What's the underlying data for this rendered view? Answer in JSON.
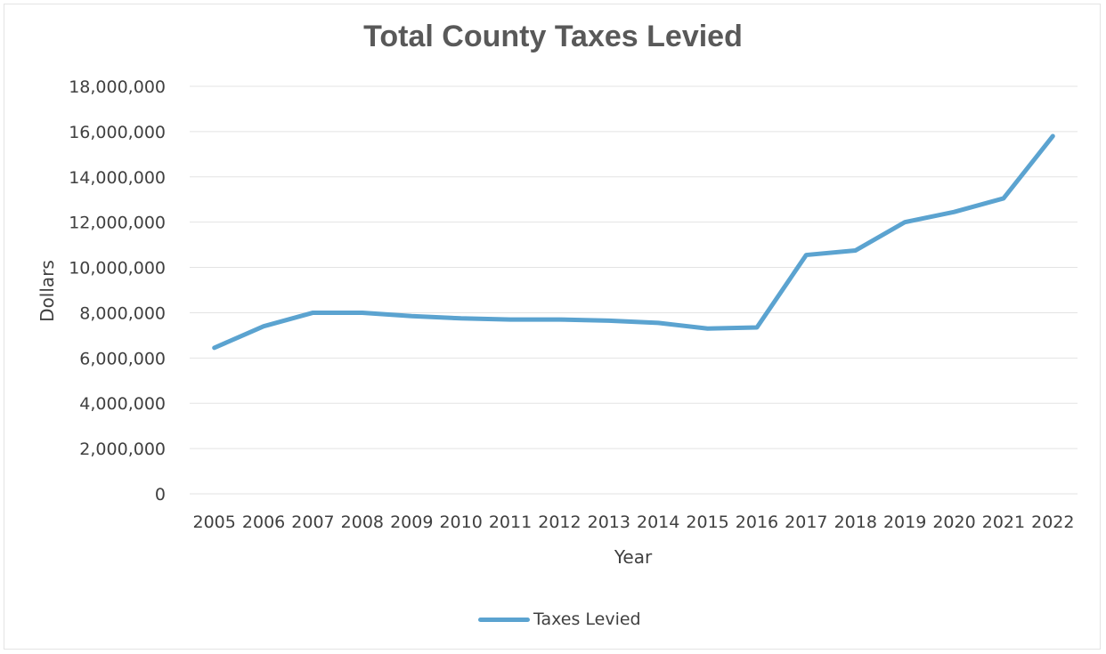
{
  "chart_data": {
    "type": "line",
    "title": "Total County Taxes Levied",
    "xlabel": "Year",
    "ylabel": "Dollars",
    "ylim": [
      0,
      18000000
    ],
    "yticks": [
      "0",
      "2,000,000",
      "4,000,000",
      "6,000,000",
      "8,000,000",
      "10,000,000",
      "12,000,000",
      "14,000,000",
      "16,000,000",
      "18,000,000"
    ],
    "categories": [
      "2005",
      "2006",
      "2007",
      "2008",
      "2009",
      "2010",
      "2011",
      "2012",
      "2013",
      "2014",
      "2015",
      "2016",
      "2017",
      "2018",
      "2019",
      "2020",
      "2021",
      "2022"
    ],
    "series": [
      {
        "name": "Taxes Levied",
        "color": "#5ba3d0",
        "values": [
          6450000,
          7400000,
          8000000,
          8000000,
          7850000,
          7750000,
          7700000,
          7700000,
          7650000,
          7550000,
          7300000,
          7350000,
          10550000,
          10750000,
          12000000,
          12450000,
          13050000,
          15800000
        ]
      }
    ],
    "grid": true,
    "legend_position": "bottom"
  }
}
